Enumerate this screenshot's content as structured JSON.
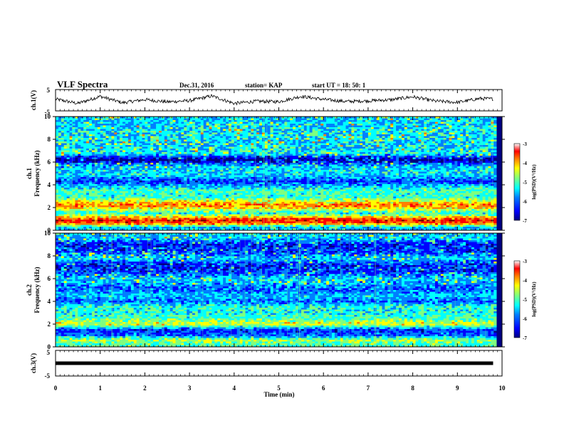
{
  "header": {
    "title": "VLF Spectra",
    "date": "Dec.31, 2016",
    "station": "station= KAP",
    "start": "start  UT  =   18: 50: 1"
  },
  "panels": {
    "ch1v_label": "ch.1(V)",
    "ch1_label": "ch.1",
    "ch2_label": "ch.2",
    "freq_label": "Frequency (kHz)",
    "ch3v_label": "ch.3(V)",
    "xlabel": "Time  (min)",
    "colorbar_label": "log(PSD)(V²/Hz)",
    "colorbar_ticks": [
      "-3",
      "-4",
      "-5",
      "-6",
      "-7"
    ],
    "volt_ticks": [
      "5",
      "-5"
    ]
  },
  "colors": {
    "scale": [
      "#00007f",
      "#0000ff",
      "#007fff",
      "#00ffff",
      "#7fff7f",
      "#ffff00",
      "#ff7f00",
      "#ff0000",
      "#7f0000"
    ]
  },
  "chart_data": [
    {
      "type": "line",
      "name": "ch1-waveform",
      "ylabel": "ch.1(V)",
      "xlim": [
        0,
        10
      ],
      "ylim": [
        -5,
        5
      ],
      "x": [
        0,
        0.5,
        1,
        1.5,
        2,
        2.5,
        3,
        3.5,
        4,
        4.5,
        5,
        5.5,
        6,
        6.5,
        7,
        7.5,
        8,
        8.5,
        9,
        9.5,
        9.8
      ],
      "y": [
        0.5,
        -1.5,
        1.8,
        -1.2,
        0.3,
        -0.8,
        -0.2,
        2.0,
        -1.5,
        -0.5,
        -0.7,
        1.8,
        0.4,
        -0.6,
        -0.3,
        0.2,
        1.6,
        -0.4,
        -1.0,
        0.8,
        0.6
      ]
    },
    {
      "type": "heatmap",
      "name": "ch1-spectrogram",
      "ylabel": "Frequency (kHz)",
      "xlim": [
        0,
        10
      ],
      "ylim": [
        0,
        10
      ],
      "yticks": [
        0,
        2,
        4,
        6,
        8,
        10
      ],
      "colorbar_range": [
        -7,
        -3
      ],
      "profile_freq_khz": [
        0.3,
        0.6,
        0.9,
        1.5,
        2.2,
        2.9,
        3.5,
        4.3,
        4.8,
        5.3,
        5.8,
        6.2,
        6.8,
        7.4,
        8.0,
        8.6,
        9.2,
        9.8
      ],
      "profile_log_psd": [
        -5.6,
        -4.0,
        -3.6,
        -5.4,
        -4.0,
        -5.3,
        -5.2,
        -6.2,
        -5.6,
        -5.5,
        -5.9,
        -6.8,
        -5.4,
        -5.6,
        -5.5,
        -5.5,
        -5.6,
        -5.6
      ]
    },
    {
      "type": "heatmap",
      "name": "ch2-spectrogram",
      "ylabel": "Frequency (kHz)",
      "xlim": [
        0,
        10
      ],
      "ylim": [
        0,
        10
      ],
      "yticks": [
        0,
        2,
        4,
        6,
        8,
        10
      ],
      "colorbar_range": [
        -7,
        -3
      ],
      "profile_freq_khz": [
        0.3,
        0.6,
        1.0,
        1.5,
        2.0,
        2.5,
        3.0,
        3.5,
        4.0,
        4.5,
        5.0,
        5.5,
        6.0,
        6.6,
        7.2,
        7.8,
        8.4,
        9.0,
        9.6
      ],
      "profile_log_psd": [
        -5.2,
        -4.8,
        -6.0,
        -6.2,
        -4.6,
        -5.2,
        -5.4,
        -5.3,
        -6.0,
        -5.6,
        -6.0,
        -5.8,
        -5.6,
        -6.2,
        -6.3,
        -5.6,
        -6.2,
        -6.3,
        -5.6
      ]
    },
    {
      "type": "line",
      "name": "ch3-waveform",
      "ylabel": "ch.3(V)",
      "xlim": [
        0,
        10
      ],
      "ylim": [
        -5,
        5
      ],
      "x": [
        0,
        9.8
      ],
      "y": [
        0,
        0
      ]
    }
  ],
  "xaxis": {
    "ticks": [
      "0",
      "1",
      "2",
      "3",
      "4",
      "5",
      "6",
      "7",
      "8",
      "9",
      "10"
    ]
  }
}
